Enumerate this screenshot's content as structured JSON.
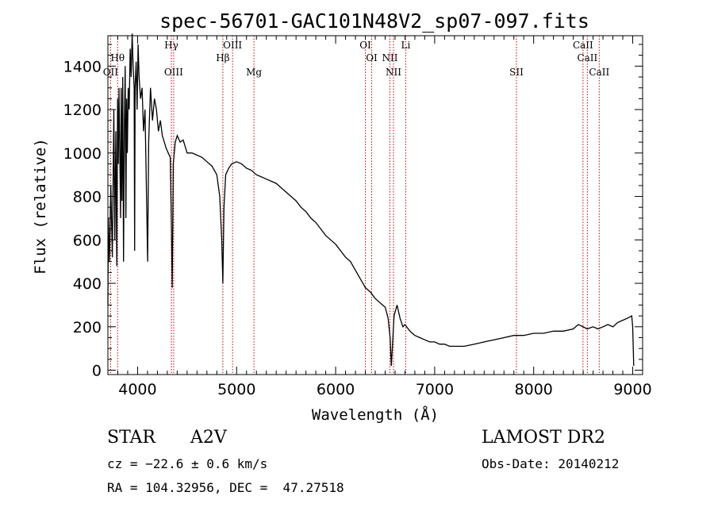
{
  "chart_data": {
    "type": "line",
    "title": "spec-56701-GAC101N48V2_sp07-097.fits",
    "xlabel": "Wavelength (Å)",
    "ylabel": "Flux (relative)",
    "xlim": [
      3700,
      9100
    ],
    "ylim": [
      -20,
      1540
    ],
    "x_ticks": [
      4000,
      5000,
      6000,
      7000,
      8000,
      9000
    ],
    "y_ticks": [
      0,
      200,
      400,
      600,
      800,
      1000,
      1200,
      1400
    ],
    "grid": false,
    "series": [
      {
        "x": [
          3700,
          3705,
          3715,
          3730,
          3745,
          3760,
          3770,
          3780,
          3790,
          3798,
          3805,
          3812,
          3820,
          3828,
          3835,
          3842,
          3850,
          3858,
          3866,
          3875,
          3882,
          3889,
          3896,
          3905,
          3915,
          3925,
          3935,
          3945,
          3955,
          3965,
          3970,
          3975,
          3985,
          3995,
          4005,
          4015,
          4030,
          4045,
          4060,
          4075,
          4090,
          4101,
          4112,
          4130,
          4150,
          4170,
          4190,
          4210,
          4230,
          4250,
          4270,
          4290,
          4310,
          4330,
          4340,
          4350,
          4360,
          4380,
          4400,
          4430,
          4460,
          4500,
          4550,
          4600,
          4650,
          4700,
          4750,
          4800,
          4830,
          4850,
          4861,
          4872,
          4890,
          4920,
          4950,
          5000,
          5050,
          5100,
          5150,
          5200,
          5250,
          5300,
          5350,
          5400,
          5450,
          5500,
          5550,
          5600,
          5650,
          5700,
          5750,
          5800,
          5850,
          5900,
          5950,
          6000,
          6050,
          6100,
          6150,
          6200,
          6250,
          6300,
          6350,
          6400,
          6450,
          6500,
          6530,
          6550,
          6563,
          6575,
          6590,
          6620,
          6650,
          6680,
          6700,
          6750,
          6800,
          6850,
          6900,
          6950,
          7000,
          7050,
          7100,
          7150,
          7200,
          7300,
          7400,
          7500,
          7600,
          7700,
          7800,
          7900,
          8000,
          8100,
          8200,
          8300,
          8400,
          8450,
          8500,
          8540,
          8600,
          8650,
          8700,
          8750,
          8800,
          8850,
          8900,
          8950,
          8990,
          9000,
          9010
        ],
        "y": [
          300,
          700,
          500,
          850,
          520,
          1200,
          600,
          1100,
          480,
          1250,
          950,
          1300,
          1000,
          700,
          1300,
          780,
          1350,
          500,
          1100,
          1400,
          700,
          1250,
          1000,
          1300,
          1200,
          1480,
          1350,
          1550,
          1400,
          1300,
          550,
          1300,
          1420,
          1200,
          1500,
          1350,
          1250,
          1300,
          1100,
          1200,
          800,
          500,
          1050,
          1300,
          1150,
          1250,
          1200,
          1100,
          1150,
          1080,
          1050,
          1020,
          1000,
          980,
          700,
          380,
          950,
          1050,
          1080,
          1050,
          1060,
          1000,
          1000,
          990,
          980,
          960,
          940,
          900,
          800,
          600,
          400,
          750,
          900,
          930,
          950,
          960,
          950,
          930,
          920,
          900,
          890,
          880,
          870,
          860,
          840,
          820,
          800,
          780,
          750,
          730,
          700,
          680,
          650,
          620,
          600,
          580,
          550,
          520,
          500,
          460,
          420,
          380,
          360,
          330,
          310,
          290,
          240,
          150,
          20,
          120,
          250,
          300,
          240,
          200,
          210,
          180,
          160,
          150,
          140,
          130,
          130,
          120,
          120,
          110,
          110,
          110,
          120,
          130,
          140,
          150,
          160,
          160,
          170,
          170,
          180,
          180,
          190,
          210,
          200,
          190,
          200,
          190,
          200,
          210,
          200,
          220,
          230,
          240,
          250,
          200,
          20
        ]
      }
    ],
    "spectral_lines": [
      {
        "label": "Hθ",
        "x": 3798,
        "row": 0
      },
      {
        "label": "OII",
        "x": 3727,
        "row": 1
      },
      {
        "label": "Hγ",
        "x": 4341,
        "row": -1
      },
      {
        "label": "OIII",
        "x": 4364,
        "row": 1
      },
      {
        "label": "Hβ",
        "x": 4861,
        "row": 0
      },
      {
        "label": "OIII",
        "x": 4959,
        "row": -1
      },
      {
        "label": "Mg",
        "x": 5175,
        "row": 1
      },
      {
        "label": "OI",
        "x": 6300,
        "row": -1
      },
      {
        "label": "OI",
        "x": 6364,
        "row": 0
      },
      {
        "label": "NII",
        "x": 6548,
        "row": 0
      },
      {
        "label": "NII",
        "x": 6584,
        "row": 1
      },
      {
        "label": "Li",
        "x": 6708,
        "row": -1
      },
      {
        "label": "SII",
        "x": 7826,
        "row": 1
      },
      {
        "label": "CaII",
        "x": 8498,
        "row": -1
      },
      {
        "label": "CaII",
        "x": 8542,
        "row": 0
      },
      {
        "label": "CaII",
        "x": 8662,
        "row": 1
      }
    ],
    "line_color": "#000000",
    "marker_color": "#cc0000"
  },
  "info": {
    "class": "STAR",
    "subclass": "A2V",
    "survey": "LAMOST DR2",
    "cz": "cz = −22.6 ± 0.6 km/s",
    "obs_date": "Obs-Date: 20140212",
    "coords": "RA = 104.32956, DEC =  47.27518"
  }
}
